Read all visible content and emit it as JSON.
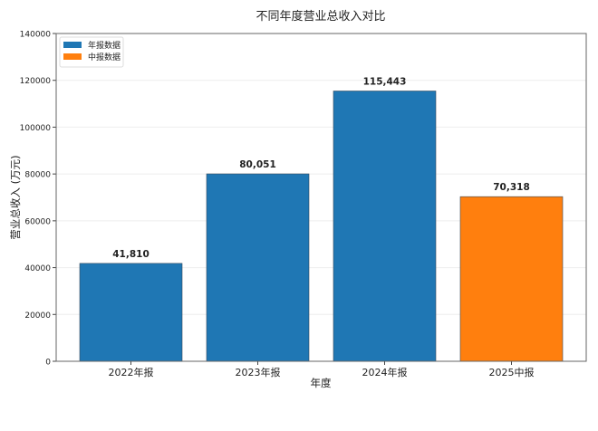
{
  "chart_data": {
    "type": "bar",
    "title": "不同年度营业总收入对比",
    "xlabel": "年度",
    "ylabel": "营业总收入 (万元)",
    "categories": [
      "2022年报",
      "2023年报",
      "2024年报",
      "2025中报"
    ],
    "values": [
      41810,
      80051,
      115443,
      70318
    ],
    "value_labels": [
      "41,810",
      "80,051",
      "115,443",
      "70,318"
    ],
    "bar_series": [
      "年报数据",
      "年报数据",
      "年报数据",
      "中报数据"
    ],
    "ylim": [
      0,
      140000
    ],
    "yticks": [
      0,
      20000,
      40000,
      60000,
      80000,
      100000,
      120000,
      140000
    ],
    "grid": "horizontal",
    "legend": {
      "position": "top-left",
      "entries": [
        {
          "name": "年报数据",
          "color": "#1f77b4"
        },
        {
          "name": "中报数据",
          "color": "#ff7f0e"
        }
      ]
    }
  }
}
